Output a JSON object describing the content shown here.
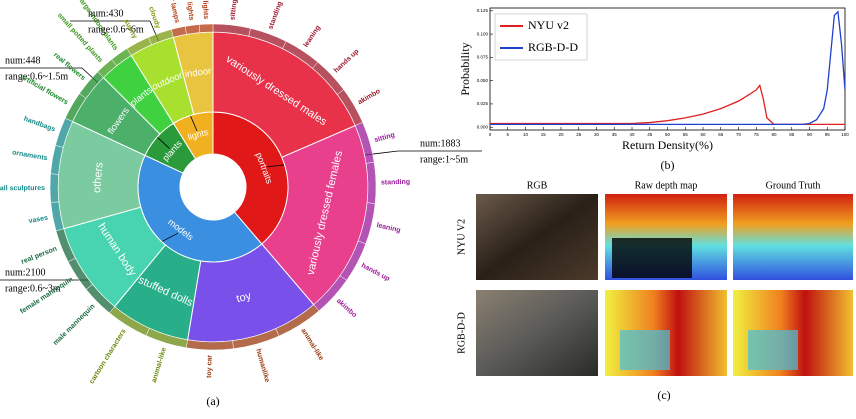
{
  "chart_data": [
    {
      "type": "sunburst",
      "caption": "(a)",
      "nodes": [
        {
          "name": "portraits",
          "value": 1883,
          "color": "#e01818",
          "note": [
            "num:1883",
            "range:1~5m"
          ],
          "children": [
            {
              "name": "variously dressed males",
              "value": 900,
              "color": "#e8324a",
              "leaf_color": "#a0182a",
              "children": [
                {
                  "name": "sitting",
                  "value": 180
                },
                {
                  "name": "standing",
                  "value": 180
                },
                {
                  "name": "leaning",
                  "value": 180
                },
                {
                  "name": "hands up",
                  "value": 180
                },
                {
                  "name": "akimbo",
                  "value": 180
                }
              ]
            },
            {
              "name": "variously dressed females",
              "value": 983,
              "color": "#e8408c",
              "leaf_color": "#9a1a9a",
              "children": [
                {
                  "name": "sitting",
                  "value": 197
                },
                {
                  "name": "standing",
                  "value": 197
                },
                {
                  "name": "leaning",
                  "value": 197
                },
                {
                  "name": "hands up",
                  "value": 196
                },
                {
                  "name": "akimbo",
                  "value": 196
                }
              ]
            }
          ]
        },
        {
          "name": "models",
          "value": 2100,
          "color": "#3a8fe0",
          "note": [
            "num:2100",
            "range:0.6~3m"
          ],
          "children": [
            {
              "name": "toy",
              "value": 675,
              "color": "#7a50ea",
              "leaf_color": "#9a3a10",
              "children": [
                {
                  "name": "animal-like",
                  "value": 225
                },
                {
                  "name": "humanlike",
                  "value": 225
                },
                {
                  "name": "toy car",
                  "value": 225
                }
              ]
            },
            {
              "name": "stuffed dolls",
              "value": 405,
              "color": "#28ae88",
              "leaf_color": "#6a8a10",
              "children": [
                {
                  "name": "animal-like",
                  "value": 200
                },
                {
                  "name": "cartoon characters",
                  "value": 205
                }
              ]
            },
            {
              "name": "human body",
              "value": 472,
              "color": "#48d4b0",
              "leaf_color": "#1a6a40",
              "children": [
                {
                  "name": "male mannequin",
                  "value": 157
                },
                {
                  "name": "female mannequin",
                  "value": 157
                },
                {
                  "name": "real person",
                  "value": 158
                }
              ]
            },
            {
              "name": "others",
              "value": 548,
              "color": "#7ccaa0",
              "leaf_color": "#158a8a",
              "children": [
                {
                  "name": "vases",
                  "value": 137
                },
                {
                  "name": "small sculptures",
                  "value": 137
                },
                {
                  "name": "ornaments",
                  "value": 137
                },
                {
                  "name": "handbags",
                  "value": 137
                }
              ]
            }
          ]
        },
        {
          "name": "plants",
          "value": 448,
          "color": "#2a9a3a",
          "note": [
            "num:448",
            "range:0.6~1.5m"
          ],
          "children": [
            {
              "name": "flowers",
              "value": 270,
              "color": "#4caf6a",
              "leaf_color": "#1a8a2a",
              "children": [
                {
                  "name": "artificial flowers",
                  "value": 135
                },
                {
                  "name": "real flowers",
                  "value": 135
                }
              ]
            },
            {
              "name": "plants",
              "value": 178,
              "color": "#3fd13f",
              "leaf_color": "#3a9a1a",
              "children": [
                {
                  "name": "small potted plants",
                  "value": 89
                },
                {
                  "name": "large indoor plants",
                  "value": 89
                }
              ]
            }
          ]
        },
        {
          "name": "lights",
          "value": 430,
          "color": "#f0b020",
          "note": [
            "num:430",
            "range:0.6~6m"
          ],
          "children": [
            {
              "name": "outdoor",
              "value": 230,
              "color": "#a8e030",
              "leaf_color": "#7a9a10",
              "children": [
                {
                  "name": "sunny",
                  "value": 115
                },
                {
                  "name": "cloudy",
                  "value": 115
                }
              ]
            },
            {
              "name": "indoor",
              "value": 200,
              "color": "#e8c440",
              "leaf_color": "#b03a10",
              "children": [
                {
                  "name": "interior lamps",
                  "value": 67
                },
                {
                  "name": "colored lights",
                  "value": 67
                },
                {
                  "name": "twinkle lights",
                  "value": 66
                }
              ]
            }
          ]
        }
      ]
    },
    {
      "type": "line",
      "caption": "(b)",
      "xlabel": "Return Density(%)",
      "ylabel": "Probability",
      "legend": "upper left",
      "x": [
        0,
        10,
        20,
        30,
        40,
        45,
        50,
        55,
        60,
        65,
        70,
        73,
        75,
        76,
        77,
        78,
        80,
        85,
        88,
        90,
        92,
        94,
        95,
        96,
        97,
        98,
        99,
        100
      ],
      "series": [
        {
          "name": "NYU v2",
          "color": "#e02020",
          "values": [
            0.004,
            0.004,
            0.004,
            0.004,
            0.004,
            0.005,
            0.007,
            0.01,
            0.014,
            0.02,
            0.028,
            0.035,
            0.04,
            0.045,
            0.03,
            0.01,
            0.003,
            0.003,
            0.003,
            0.003,
            0.003,
            0.003,
            0.003,
            0.003,
            0.003,
            0.003,
            0.003,
            0.003
          ]
        },
        {
          "name": "RGB-D-D",
          "color": "#2040d0",
          "values": [
            0.003,
            0.003,
            0.003,
            0.003,
            0.003,
            0.003,
            0.003,
            0.003,
            0.003,
            0.003,
            0.003,
            0.003,
            0.003,
            0.003,
            0.003,
            0.003,
            0.003,
            0.003,
            0.003,
            0.004,
            0.008,
            0.02,
            0.04,
            0.08,
            0.12,
            0.124,
            0.09,
            0.04
          ]
        }
      ],
      "xlim": [
        0,
        100
      ],
      "xticks": [
        0,
        5,
        10,
        15,
        20,
        25,
        30,
        35,
        40,
        45,
        50,
        55,
        60,
        65,
        70,
        75,
        80,
        85,
        90,
        95,
        100
      ],
      "ylim": [
        -0.003,
        0.128
      ],
      "yticks": [
        {
          "value": 0,
          "label": "0.000"
        },
        {
          "value": 0.025,
          "label": "0.025"
        },
        {
          "value": 0.05,
          "label": "0.050"
        },
        {
          "value": 0.075,
          "label": "0.075"
        },
        {
          "value": 0.1,
          "label": "0.100"
        },
        {
          "value": 0.125,
          "label": "0.125"
        }
      ]
    }
  ],
  "image_grid": {
    "caption": "(c)",
    "columns": [
      "RGB",
      "Raw depth map",
      "Ground Truth"
    ],
    "rows": [
      "NYU V2",
      "RGB-D-D"
    ]
  }
}
